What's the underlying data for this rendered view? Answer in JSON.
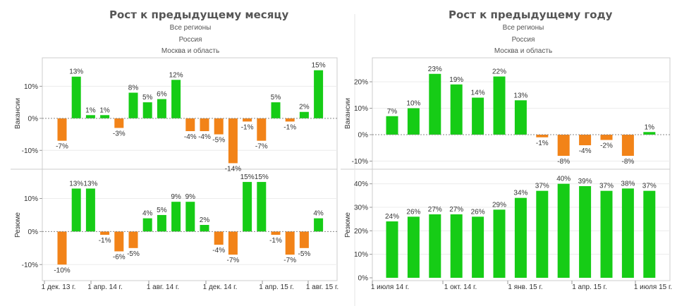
{
  "colors": {
    "positive": "#16cc16",
    "negative": "#f28318",
    "grid": "#ececec",
    "zero": "#888888",
    "axis": "#cccccc",
    "text": "#333333"
  },
  "left": {
    "title": "Рост к предыдущему месяцу",
    "filters": [
      "Все регионы",
      "Россия",
      "Москва и область"
    ]
  },
  "right": {
    "title": "Рост к предыдущему году",
    "filters": [
      "Все регионы",
      "Россия",
      "Москва и область"
    ]
  },
  "chart_data": [
    {
      "type": "bar",
      "title": "Рост к предыдущему месяцу",
      "ylabel": "Вакансии",
      "ylim": [
        -15,
        18
      ],
      "yticks": [
        10,
        0,
        -10
      ],
      "ytick_labels": [
        "10%",
        "0%",
        "-10%"
      ],
      "values": [
        -7,
        13,
        1,
        1,
        -3,
        8,
        5,
        6,
        12,
        -4,
        -4,
        -5,
        -14,
        -1,
        -7,
        5,
        -1,
        2,
        15
      ],
      "labels": [
        "-7%",
        "13%",
        "1%",
        "1%",
        "-3%",
        "8%",
        "5%",
        "6%",
        "12%",
        "-4%",
        "-4%",
        "-5%",
        "-14%",
        "-1%",
        "-7%",
        "5%",
        "-1%",
        "2%",
        "15%"
      ]
    },
    {
      "type": "bar",
      "title": "Рост к предыдущему месяцу",
      "ylabel": "Резюме",
      "ylim": [
        -14,
        18
      ],
      "yticks": [
        10,
        0,
        -10
      ],
      "ytick_labels": [
        "10%",
        "0%",
        "-10%"
      ],
      "values": [
        -10,
        13,
        13,
        -1,
        -6,
        -5,
        4,
        5,
        9,
        9,
        2,
        -4,
        -7,
        15,
        15,
        -1,
        -7,
        -5,
        4
      ],
      "labels": [
        "-10%",
        "13%",
        "13%",
        "-1%",
        "-6%",
        "-5%",
        "4%",
        "5%",
        "9%",
        "9%",
        "2%",
        "-4%",
        "-7%",
        "15%",
        "15%",
        "-1%",
        "-7%",
        "-5%",
        "4%"
      ],
      "x_ticks": [
        "1 дек. 13 г.",
        "1 апр. 14 г.",
        "1 авг. 14 г.",
        "1 дек. 14 г.",
        "1 апр. 15 г.",
        "1 авг. 15 г."
      ]
    },
    {
      "type": "bar",
      "title": "Рост к предыдущему году",
      "ylabel": "Вакансии",
      "ylim": [
        -12,
        28
      ],
      "yticks": [
        20,
        10,
        0,
        -10
      ],
      "ytick_labels": [
        "20%",
        "10%",
        "0%",
        "-10%"
      ],
      "values": [
        7,
        10,
        23,
        19,
        14,
        22,
        13,
        -1,
        -8,
        -4,
        -2,
        -8,
        1
      ],
      "labels": [
        "7%",
        "10%",
        "23%",
        "19%",
        "14%",
        "22%",
        "13%",
        "-1%",
        "-8%",
        "-4%",
        "-2%",
        "-8%",
        "1%"
      ]
    },
    {
      "type": "bar",
      "title": "Рост к предыдущему году",
      "ylabel": "Резюме",
      "ylim": [
        0,
        45
      ],
      "yticks": [
        40,
        30,
        20,
        10,
        0
      ],
      "ytick_labels": [
        "40%",
        "30%",
        "20%",
        "10%",
        "0%"
      ],
      "values": [
        24,
        26,
        27,
        27,
        26,
        29,
        34,
        37,
        40,
        39,
        37,
        38,
        37
      ],
      "labels": [
        "24%",
        "26%",
        "27%",
        "27%",
        "26%",
        "29%",
        "34%",
        "37%",
        "40%",
        "39%",
        "37%",
        "38%",
        "37%"
      ],
      "x_ticks": [
        "1 июля 14 г.",
        "1 окт. 14 г.",
        "1 янв. 15 г.",
        "1 апр. 15 г.",
        "1 июля 15 г."
      ]
    }
  ]
}
